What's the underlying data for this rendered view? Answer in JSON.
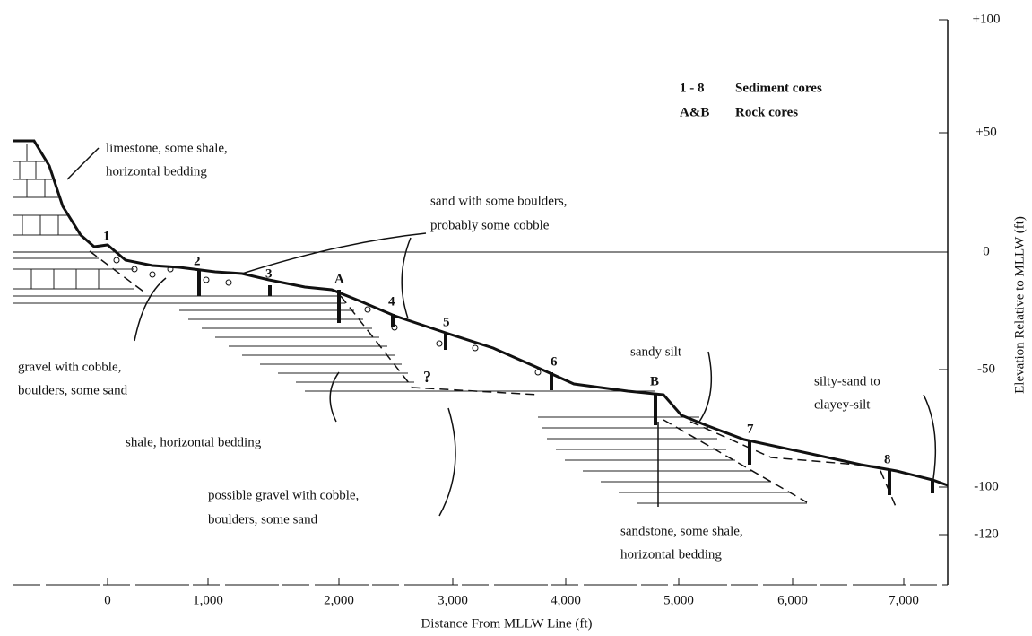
{
  "x_axis": {
    "title": "Distance From MLLW Line (ft)",
    "ticks": [
      "0",
      "1,000",
      "2,000",
      "3,000",
      "4,000",
      "5,000",
      "6,000",
      "7,000"
    ]
  },
  "y_axis": {
    "title": "Elevation Relative to MLLW (ft)",
    "ticks": [
      "+100",
      "+50",
      "0",
      "-50",
      "-100",
      "-120"
    ]
  },
  "legend": [
    {
      "key": "1 - 8",
      "text": "Sediment cores"
    },
    {
      "key": "A&B",
      "text": "Rock cores"
    }
  ],
  "core_labels": [
    "1",
    "2",
    "3",
    "A",
    "4",
    "5",
    "6",
    "B",
    "7",
    "8"
  ],
  "question_mark": "?",
  "annotations": [
    {
      "lines": [
        "limestone, some shale,",
        "horizontal bedding"
      ]
    },
    {
      "lines": [
        "sand with some boulders,",
        "probably some cobble"
      ]
    },
    {
      "lines": [
        "gravel with cobble,",
        "boulders, some sand"
      ]
    },
    {
      "lines": [
        "shale, horizontal bedding"
      ]
    },
    {
      "lines": [
        "possible gravel with cobble,",
        "boulders, some sand"
      ]
    },
    {
      "lines": [
        "sandy silt"
      ]
    },
    {
      "lines": [
        "silty-sand to",
        "clayey-silt"
      ]
    },
    {
      "lines": [
        "sandstone, some shale,",
        "horizontal bedding"
      ]
    }
  ]
}
